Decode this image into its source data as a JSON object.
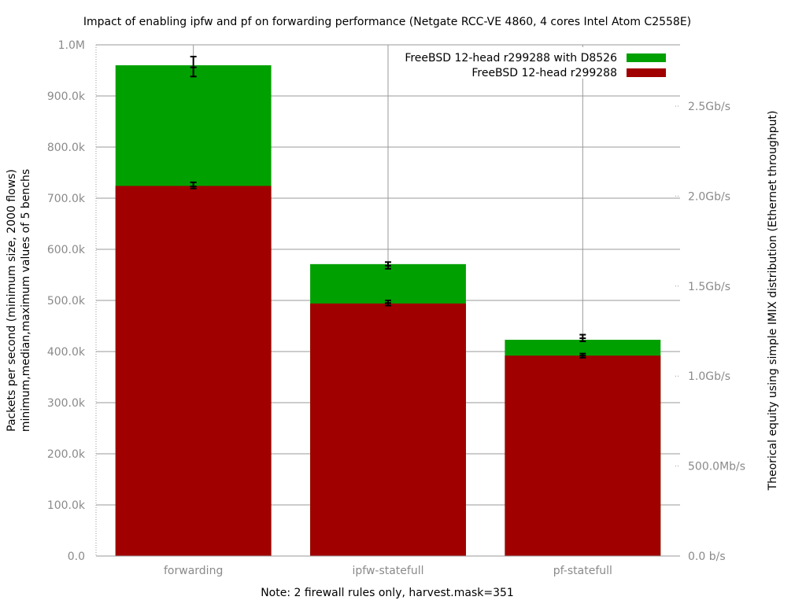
{
  "chart_data": {
    "type": "bar",
    "title": "Impact of enabling ipfw and pf on forwarding performance (Netgate RCC-VE 4860, 4 cores Intel Atom C2558E)",
    "xlabel": "Note: 2 firewall rules only, harvest.mask=351",
    "ylabel_lines": [
      "Packets per second (minimum size, 2000 flows)",
      "minimum,median,maximum values of 5 benchs"
    ],
    "y2label": "Theorical equity using simple IMIX distribution (Ethernet throughput)",
    "categories": [
      "forwarding",
      "ipfw-statefull",
      "pf-statefull"
    ],
    "ylim": [
      0,
      1000000
    ],
    "yticks": [
      {
        "value": 0,
        "label": "0.0"
      },
      {
        "value": 100000,
        "label": "100.0k"
      },
      {
        "value": 200000,
        "label": "200.0k"
      },
      {
        "value": 300000,
        "label": "300.0k"
      },
      {
        "value": 400000,
        "label": "400.0k"
      },
      {
        "value": 500000,
        "label": "500.0k"
      },
      {
        "value": 600000,
        "label": "600.0k"
      },
      {
        "value": 700000,
        "label": "700.0k"
      },
      {
        "value": 800000,
        "label": "800.0k"
      },
      {
        "value": 900000,
        "label": "900.0k"
      },
      {
        "value": 1000000,
        "label": "1.0M"
      }
    ],
    "y2ticks": [
      {
        "value": 0,
        "label": "0.0 b/s"
      },
      {
        "value": 176000,
        "label": "500.0Mb/s"
      },
      {
        "value": 352000,
        "label": "1.0Gb/s"
      },
      {
        "value": 528000,
        "label": "1.5Gb/s"
      },
      {
        "value": 704000,
        "label": "2.0Gb/s"
      },
      {
        "value": 880000,
        "label": "2.5Gb/s"
      }
    ],
    "legend_position": "top-right",
    "grid": true,
    "series": [
      {
        "name": "FreeBSD 12-head r299288 with D8526",
        "color": "#00a000",
        "values": [
          960000,
          571000,
          423000
        ],
        "err_min": [
          938000,
          562000,
          420000
        ],
        "err_median": [
          956000,
          568000,
          426000
        ],
        "err_max": [
          977000,
          575000,
          433000
        ]
      },
      {
        "name": "FreeBSD 12-head r299288",
        "color": "#a00000",
        "values": [
          724000,
          494000,
          392000
        ],
        "err_min": [
          719000,
          490000,
          388000
        ],
        "err_median": [
          723000,
          495000,
          392000
        ],
        "err_max": [
          731000,
          500000,
          396000
        ]
      }
    ]
  }
}
